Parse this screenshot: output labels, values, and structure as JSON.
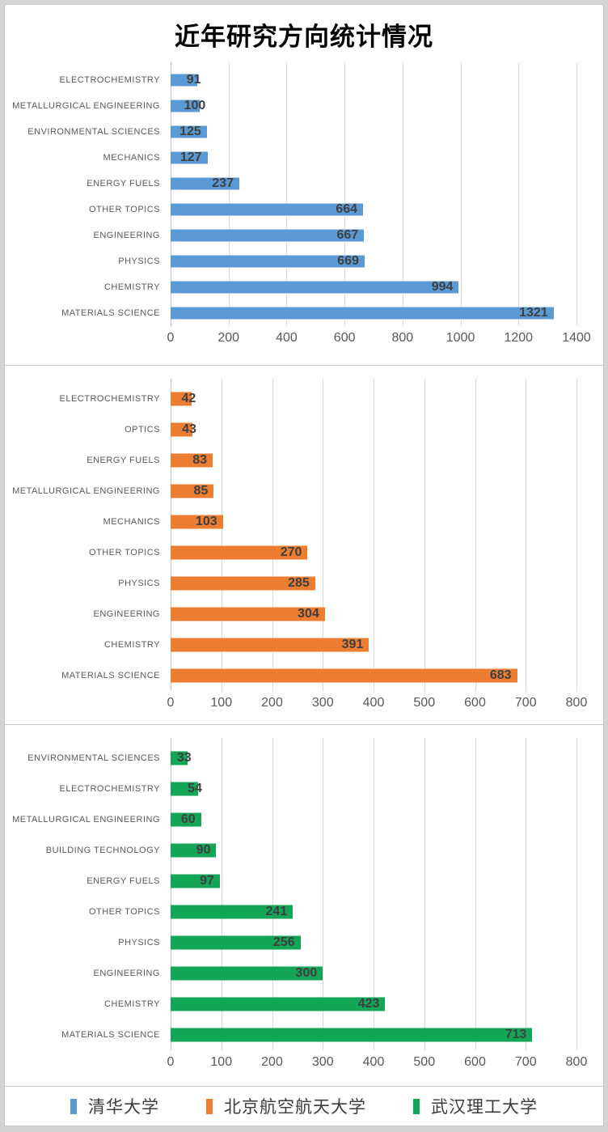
{
  "title": "近年研究方向统计情况",
  "legend": [
    {
      "label": "清华大学",
      "color": "#5B9BD5"
    },
    {
      "label": "北京航空航天大学",
      "color": "#ED7D31"
    },
    {
      "label": "武汉理工大学",
      "color": "#12A656"
    }
  ],
  "chart_data": [
    {
      "type": "bar",
      "orientation": "horizontal",
      "series_name": "清华大学",
      "color": "#5B9BD5",
      "categories": [
        "ELECTROCHEMISTRY",
        "METALLURGICAL ENGINEERING",
        "ENVIRONMENTAL SCIENCES",
        "MECHANICS",
        "ENERGY FUELS",
        "OTHER TOPICS",
        "ENGINEERING",
        "PHYSICS",
        "CHEMISTRY",
        "MATERIALS SCIENCE"
      ],
      "values": [
        91,
        100,
        125,
        127,
        237,
        664,
        667,
        669,
        994,
        1321
      ],
      "xlim": [
        0,
        1400
      ],
      "ticks": [
        0,
        200,
        400,
        600,
        800,
        1000,
        1200,
        1400
      ],
      "grid": true,
      "value_label_position": "inside-end",
      "legend_position": "none"
    },
    {
      "type": "bar",
      "orientation": "horizontal",
      "series_name": "北京航空航天大学",
      "color": "#ED7D31",
      "categories": [
        "ELECTROCHEMISTRY",
        "OPTICS",
        "ENERGY FUELS",
        "METALLURGICAL ENGINEERING",
        "MECHANICS",
        "OTHER TOPICS",
        "PHYSICS",
        "ENGINEERING",
        "CHEMISTRY",
        "MATERIALS SCIENCE"
      ],
      "values": [
        42,
        43,
        83,
        85,
        103,
        270,
        285,
        304,
        391,
        683
      ],
      "xlim": [
        0,
        800
      ],
      "ticks": [
        0,
        100,
        200,
        300,
        400,
        500,
        600,
        700,
        800
      ],
      "grid": true,
      "value_label_position": "inside-end",
      "legend_position": "none"
    },
    {
      "type": "bar",
      "orientation": "horizontal",
      "series_name": "武汉理工大学",
      "color": "#12A656",
      "categories": [
        "ENVIRONMENTAL SCIENCES",
        "ELECTROCHEMISTRY",
        "METALLURGICAL ENGINEERING",
        "BUILDING TECHNOLOGY",
        "ENERGY FUELS",
        "OTHER TOPICS",
        "PHYSICS",
        "ENGINEERING",
        "CHEMISTRY",
        "MATERIALS SCIENCE"
      ],
      "values": [
        33,
        54,
        60,
        90,
        97,
        241,
        256,
        300,
        423,
        713
      ],
      "xlim": [
        0,
        800
      ],
      "ticks": [
        0,
        100,
        200,
        300,
        400,
        500,
        600,
        700,
        800
      ],
      "grid": true,
      "value_label_position": "inside-end",
      "legend_position": "none"
    }
  ]
}
